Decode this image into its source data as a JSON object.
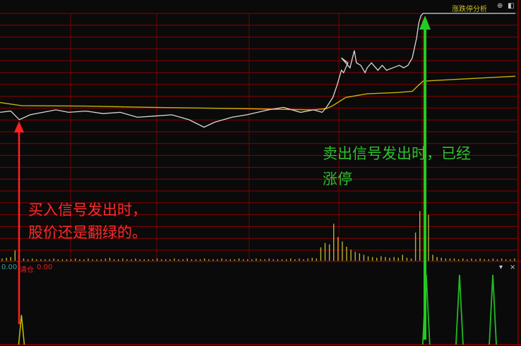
{
  "panel_title": "涨跌停分析",
  "icons": {
    "panel_add": "plus-circle-icon",
    "panel_layout": "layout-icon",
    "sub_menu": "triangle-down-icon",
    "sub_close": "close-icon"
  },
  "sub_indicator": {
    "value1": "0.00",
    "label": "清仓",
    "value2": "0.00"
  },
  "annotations": {
    "buy_line1": "买入信号发出时，",
    "buy_line2": "股价还是翻绿的。",
    "sell_line1": "卖出信号发出时，已经",
    "sell_line2": "涨停"
  },
  "colors": {
    "background": "#0a0a0a",
    "grid": "#8b0000",
    "price": "#d8d8d8",
    "average": "#c8b400",
    "volume": "#b8b030",
    "buy_arrow": "#ff2020",
    "sell_arrow": "#22cc22",
    "buy_signal": "#c8c000",
    "sell_signal": "#22bb22"
  },
  "chart_data": {
    "type": "line",
    "title": "",
    "xlabel": "",
    "ylabel": "",
    "x_unit": "trading minute",
    "grid": true,
    "price": [
      [
        0,
        60
      ],
      [
        5,
        60.5
      ],
      [
        9,
        57
      ],
      [
        14,
        59
      ],
      [
        20,
        60
      ],
      [
        26,
        61
      ],
      [
        32,
        60
      ],
      [
        40,
        60.5
      ],
      [
        48,
        59.5
      ],
      [
        56,
        60
      ],
      [
        64,
        58
      ],
      [
        72,
        58.5
      ],
      [
        80,
        59
      ],
      [
        88,
        57
      ],
      [
        95,
        54
      ],
      [
        100,
        56
      ],
      [
        108,
        58
      ],
      [
        115,
        59
      ],
      [
        120,
        60
      ],
      [
        125,
        61
      ],
      [
        132,
        62
      ],
      [
        140,
        60
      ],
      [
        146,
        61
      ],
      [
        150,
        60
      ],
      [
        152,
        62
      ],
      [
        155,
        66
      ],
      [
        157,
        71
      ],
      [
        159,
        77
      ],
      [
        160,
        76
      ],
      [
        162,
        80
      ],
      [
        159,
        82
      ],
      [
        161,
        80
      ],
      [
        163,
        78
      ],
      [
        165,
        85
      ],
      [
        166,
        80
      ],
      [
        168,
        79
      ],
      [
        170,
        76
      ],
      [
        171,
        78
      ],
      [
        173,
        80
      ],
      [
        176,
        77
      ],
      [
        178,
        79
      ],
      [
        180,
        77
      ],
      [
        183,
        78
      ],
      [
        186,
        79
      ],
      [
        188,
        78
      ],
      [
        190,
        79
      ],
      [
        192,
        82
      ],
      [
        194,
        90
      ],
      [
        195,
        96
      ],
      [
        196,
        99
      ],
      [
        197,
        100
      ],
      [
        240,
        100
      ]
    ],
    "average": [
      [
        0,
        64
      ],
      [
        10,
        62.7
      ],
      [
        40,
        62.5
      ],
      [
        72,
        62
      ],
      [
        110,
        61.5
      ],
      [
        146,
        61
      ],
      [
        152,
        61.5
      ],
      [
        155,
        62.7
      ],
      [
        161,
        66
      ],
      [
        171,
        67.5
      ],
      [
        185,
        68
      ],
      [
        192,
        68.5
      ],
      [
        195,
        71
      ],
      [
        197,
        72.6
      ],
      [
        205,
        73
      ],
      [
        240,
        74.6
      ]
    ],
    "volume": [
      3,
      4,
      5,
      14,
      6,
      3,
      2,
      3,
      2,
      2,
      2,
      2,
      3,
      2,
      2,
      2,
      2,
      3,
      2,
      2,
      3,
      2,
      2,
      2,
      3,
      4,
      2,
      2,
      3,
      2,
      2,
      3,
      2,
      2,
      2,
      2,
      3,
      2,
      2,
      2,
      3,
      2,
      2,
      3,
      2,
      2,
      2,
      3,
      2,
      2,
      2,
      3,
      2,
      2,
      2,
      3,
      2,
      2,
      2,
      3,
      2,
      2,
      3,
      2,
      2,
      2,
      2,
      3,
      2,
      3,
      2,
      3,
      4,
      3,
      18,
      24,
      22,
      50,
      32,
      26,
      19,
      15,
      12,
      10,
      8,
      6,
      5,
      4,
      6,
      5,
      4,
      5,
      4,
      8,
      4,
      3,
      38,
      67,
      100,
      62,
      8,
      5,
      4,
      3,
      3,
      3,
      2,
      3,
      2,
      3,
      2,
      3,
      2,
      2,
      3,
      2,
      3,
      2,
      2,
      3
    ],
    "buy_signals": [
      10
    ],
    "sell_signals": [
      198.5,
      214,
      229.5
    ]
  }
}
